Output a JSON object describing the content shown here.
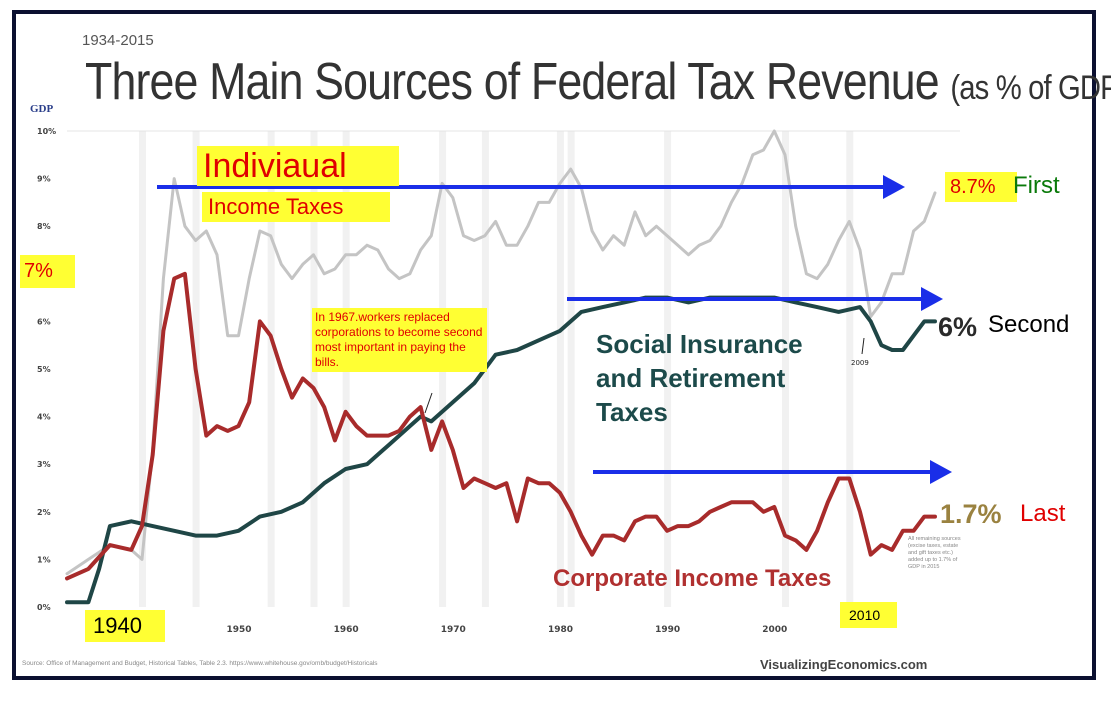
{
  "header": {
    "years": "1934-2015",
    "title_main": "Three Main Sources of Federal Tax Revenue",
    "title_sub": "(as % of GDP)",
    "gdp_label": "GDP"
  },
  "annotations": {
    "seven": "7%",
    "indiv": "Indiviaual",
    "income_taxes": "Income Taxes",
    "note_1967": "In 1967.workers replaced corporations to become second most important in paying the bills.",
    "v87": "8.7%",
    "first": "First",
    "v6": "6%",
    "second": "Second",
    "v17": "1.7%",
    "last": "Last",
    "social": "Social Insurance and Retirement Taxes",
    "corporate": "Corporate Income Taxes",
    "y1940": "1940",
    "y2010": "2010",
    "y2009": "2009",
    "side_note": "All remaining sources (excise taxes, estate and gift taxes etc.) added up to 1.7% of GDP in 2015",
    "source": "Source: Office of Management and Budget, Historical Tables, Table 2.3. https://www.whitehouse.gov/omb/budget/Historicals",
    "brand": "VisualizingEconomics.com"
  },
  "colors": {
    "individual": "#c4c4c4",
    "social": "#1f4646",
    "corporate": "#a82b2b",
    "arrow": "#1a2ee8"
  },
  "chart_data": {
    "type": "line",
    "xlim": [
      1934,
      2015
    ],
    "ylim": [
      0,
      10
    ],
    "x_ticks": [
      1950,
      1960,
      1970,
      1980,
      1990,
      2000
    ],
    "y_ticks": [
      "0%",
      "1%",
      "2%",
      "3%",
      "4%",
      "5%",
      "6%",
      "7%",
      "8%",
      "9%",
      "10%"
    ],
    "grid": true,
    "series": [
      {
        "name": "Indiviaual Income Taxes",
        "x": [
          1934,
          1936,
          1938,
          1940,
          1941,
          1942,
          1943,
          1944,
          1945,
          1946,
          1947,
          1948,
          1949,
          1950,
          1951,
          1952,
          1953,
          1954,
          1955,
          1956,
          1957,
          1958,
          1959,
          1960,
          1961,
          1962,
          1963,
          1964,
          1965,
          1966,
          1967,
          1968,
          1969,
          1970,
          1971,
          1972,
          1973,
          1974,
          1975,
          1976,
          1977,
          1978,
          1979,
          1980,
          1981,
          1982,
          1983,
          1984,
          1985,
          1986,
          1987,
          1988,
          1989,
          1990,
          1991,
          1992,
          1993,
          1994,
          1995,
          1996,
          1997,
          1998,
          1999,
          2000,
          2001,
          2002,
          2003,
          2004,
          2005,
          2006,
          2007,
          2008,
          2009,
          2010,
          2011,
          2012,
          2013,
          2014,
          2015
        ],
        "values": [
          0.7,
          1.0,
          1.3,
          1.2,
          1.0,
          3.3,
          6.9,
          9.0,
          8.0,
          7.7,
          7.9,
          7.4,
          5.7,
          5.7,
          6.9,
          7.9,
          7.8,
          7.2,
          6.9,
          7.2,
          7.4,
          7.0,
          7.1,
          7.4,
          7.4,
          7.6,
          7.5,
          7.1,
          6.9,
          7.0,
          7.5,
          7.8,
          8.9,
          8.6,
          7.8,
          7.7,
          7.8,
          8.1,
          7.6,
          7.6,
          8.0,
          8.5,
          8.5,
          8.9,
          9.2,
          8.8,
          7.9,
          7.5,
          7.8,
          7.6,
          8.3,
          7.8,
          8.0,
          7.8,
          7.6,
          7.4,
          7.6,
          7.7,
          8.0,
          8.5,
          8.9,
          9.5,
          9.6,
          10.0,
          9.5,
          8.0,
          7.0,
          6.9,
          7.2,
          7.7,
          8.1,
          7.5,
          6.1,
          6.4,
          7.0,
          7.0,
          7.9,
          8.1,
          8.7
        ]
      },
      {
        "name": "Social Insurance and Retirement Taxes",
        "x": [
          1934,
          1936,
          1937,
          1938,
          1940,
          1942,
          1944,
          1946,
          1948,
          1950,
          1952,
          1954,
          1956,
          1958,
          1960,
          1962,
          1964,
          1966,
          1967,
          1968,
          1970,
          1972,
          1974,
          1976,
          1978,
          1980,
          1982,
          1984,
          1986,
          1988,
          1990,
          1992,
          1994,
          1996,
          1998,
          2000,
          2002,
          2004,
          2006,
          2008,
          2009,
          2010,
          2011,
          2012,
          2013,
          2014,
          2015
        ],
        "values": [
          0.1,
          0.1,
          0.8,
          1.7,
          1.8,
          1.7,
          1.6,
          1.5,
          1.5,
          1.6,
          1.9,
          2.0,
          2.2,
          2.6,
          2.9,
          3.0,
          3.4,
          3.8,
          4.0,
          3.9,
          4.3,
          4.7,
          5.3,
          5.4,
          5.6,
          5.8,
          6.2,
          6.3,
          6.4,
          6.5,
          6.5,
          6.4,
          6.5,
          6.5,
          6.5,
          6.5,
          6.4,
          6.3,
          6.2,
          6.3,
          6.0,
          5.5,
          5.4,
          5.4,
          5.7,
          6.0,
          6.0
        ]
      },
      {
        "name": "Corporate Income Taxes",
        "x": [
          1934,
          1936,
          1938,
          1940,
          1941,
          1942,
          1943,
          1944,
          1945,
          1946,
          1947,
          1948,
          1949,
          1950,
          1951,
          1952,
          1953,
          1954,
          1955,
          1956,
          1957,
          1958,
          1959,
          1960,
          1961,
          1962,
          1963,
          1964,
          1965,
          1966,
          1967,
          1968,
          1969,
          1970,
          1971,
          1972,
          1973,
          1974,
          1975,
          1976,
          1977,
          1978,
          1979,
          1980,
          1981,
          1982,
          1983,
          1984,
          1985,
          1986,
          1987,
          1988,
          1989,
          1990,
          1991,
          1992,
          1993,
          1994,
          1995,
          1996,
          1997,
          1998,
          1999,
          2000,
          2001,
          2002,
          2003,
          2004,
          2005,
          2006,
          2007,
          2008,
          2009,
          2010,
          2011,
          2012,
          2013,
          2014,
          2015
        ],
        "values": [
          0.6,
          0.8,
          1.3,
          1.2,
          1.7,
          3.2,
          5.8,
          6.9,
          7.0,
          5.0,
          3.6,
          3.8,
          3.7,
          3.8,
          4.3,
          6.0,
          5.7,
          5.0,
          4.4,
          4.8,
          4.6,
          4.2,
          3.5,
          4.1,
          3.8,
          3.6,
          3.6,
          3.6,
          3.7,
          4.0,
          4.2,
          3.3,
          3.9,
          3.3,
          2.5,
          2.7,
          2.6,
          2.5,
          2.6,
          1.8,
          2.7,
          2.6,
          2.6,
          2.4,
          2.0,
          1.5,
          1.1,
          1.5,
          1.5,
          1.4,
          1.8,
          1.9,
          1.9,
          1.6,
          1.7,
          1.7,
          1.8,
          2.0,
          2.1,
          2.2,
          2.2,
          2.2,
          2.0,
          2.1,
          1.5,
          1.4,
          1.2,
          1.6,
          2.2,
          2.7,
          2.7,
          2.0,
          1.1,
          1.3,
          1.2,
          1.6,
          1.6,
          1.9,
          1.9
        ]
      }
    ]
  }
}
